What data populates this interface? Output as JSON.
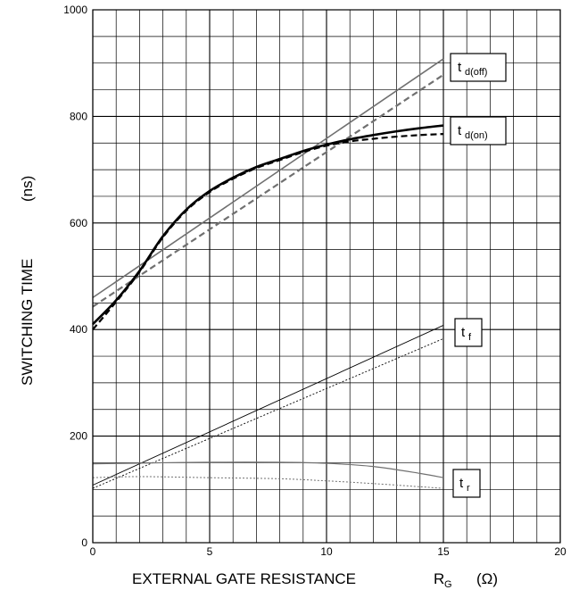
{
  "chart_data": {
    "type": "line",
    "xlabel": {
      "main": "EXTERNAL GATE RESISTANCE",
      "symbol": "R",
      "symbol_sub": "G",
      "unit": "(Ω)"
    },
    "ylabel": {
      "main": "SWITCHING TIME",
      "unit": "(ns)"
    },
    "xlim": [
      0,
      20
    ],
    "ylim": [
      0,
      1000
    ],
    "x_ticks": [
      0,
      5,
      10,
      15,
      20
    ],
    "y_ticks": [
      0,
      200,
      400,
      600,
      800,
      1000
    ],
    "x_minor_step": 1,
    "y_minor_step": 50,
    "grid": true,
    "series": [
      {
        "name": "td(off)",
        "style": "solid",
        "color": "#707070",
        "width": 1.6,
        "x": [
          0,
          15
        ],
        "y": [
          460,
          908
        ]
      },
      {
        "name": "td(off)",
        "style": "dashed",
        "color": "#707070",
        "width": 2.2,
        "x": [
          0,
          15
        ],
        "y": [
          443,
          878
        ]
      },
      {
        "name": "td(on)",
        "style": "solid",
        "color": "#000000",
        "width": 2.6,
        "x": [
          0,
          1,
          2,
          3,
          4,
          5,
          6,
          7,
          8,
          9,
          10,
          11,
          12,
          13,
          14,
          15
        ],
        "y": [
          410,
          455,
          510,
          575,
          625,
          660,
          685,
          705,
          720,
          735,
          747,
          757,
          765,
          772,
          778,
          783
        ]
      },
      {
        "name": "td(on)",
        "style": "dashed",
        "color": "#000000",
        "width": 2.2,
        "x": [
          0,
          1,
          2,
          3,
          4,
          5,
          6,
          7,
          8,
          9,
          10,
          11,
          12,
          13,
          14,
          15
        ],
        "y": [
          400,
          452,
          508,
          573,
          623,
          658,
          683,
          703,
          718,
          733,
          745,
          753,
          758,
          762,
          765,
          767
        ]
      },
      {
        "name": "tf",
        "style": "solid",
        "color": "#000000",
        "width": 0.9,
        "x": [
          0,
          15
        ],
        "y": [
          108,
          408
        ]
      },
      {
        "name": "tf",
        "style": "dotted",
        "color": "#000000",
        "width": 0.9,
        "x": [
          0,
          15
        ],
        "y": [
          102,
          383
        ]
      },
      {
        "name": "tr",
        "style": "solid",
        "color": "#707070",
        "width": 1.2,
        "x": [
          0,
          3,
          5,
          8,
          10,
          12,
          14,
          15
        ],
        "y": [
          148,
          150,
          151,
          151,
          149,
          143,
          130,
          122
        ]
      },
      {
        "name": "tr",
        "style": "dotted",
        "color": "#707070",
        "width": 1.0,
        "x": [
          0,
          2,
          5,
          8,
          10,
          12,
          14,
          15
        ],
        "y": [
          122,
          124,
          122,
          120,
          116,
          111,
          105,
          102
        ]
      }
    ],
    "annotations": [
      {
        "main": "t",
        "sub": "d(off)"
      },
      {
        "main": "t",
        "sub": "d(on)"
      },
      {
        "main": "t",
        "sub": "f"
      },
      {
        "main": "t",
        "sub": "r"
      }
    ]
  }
}
